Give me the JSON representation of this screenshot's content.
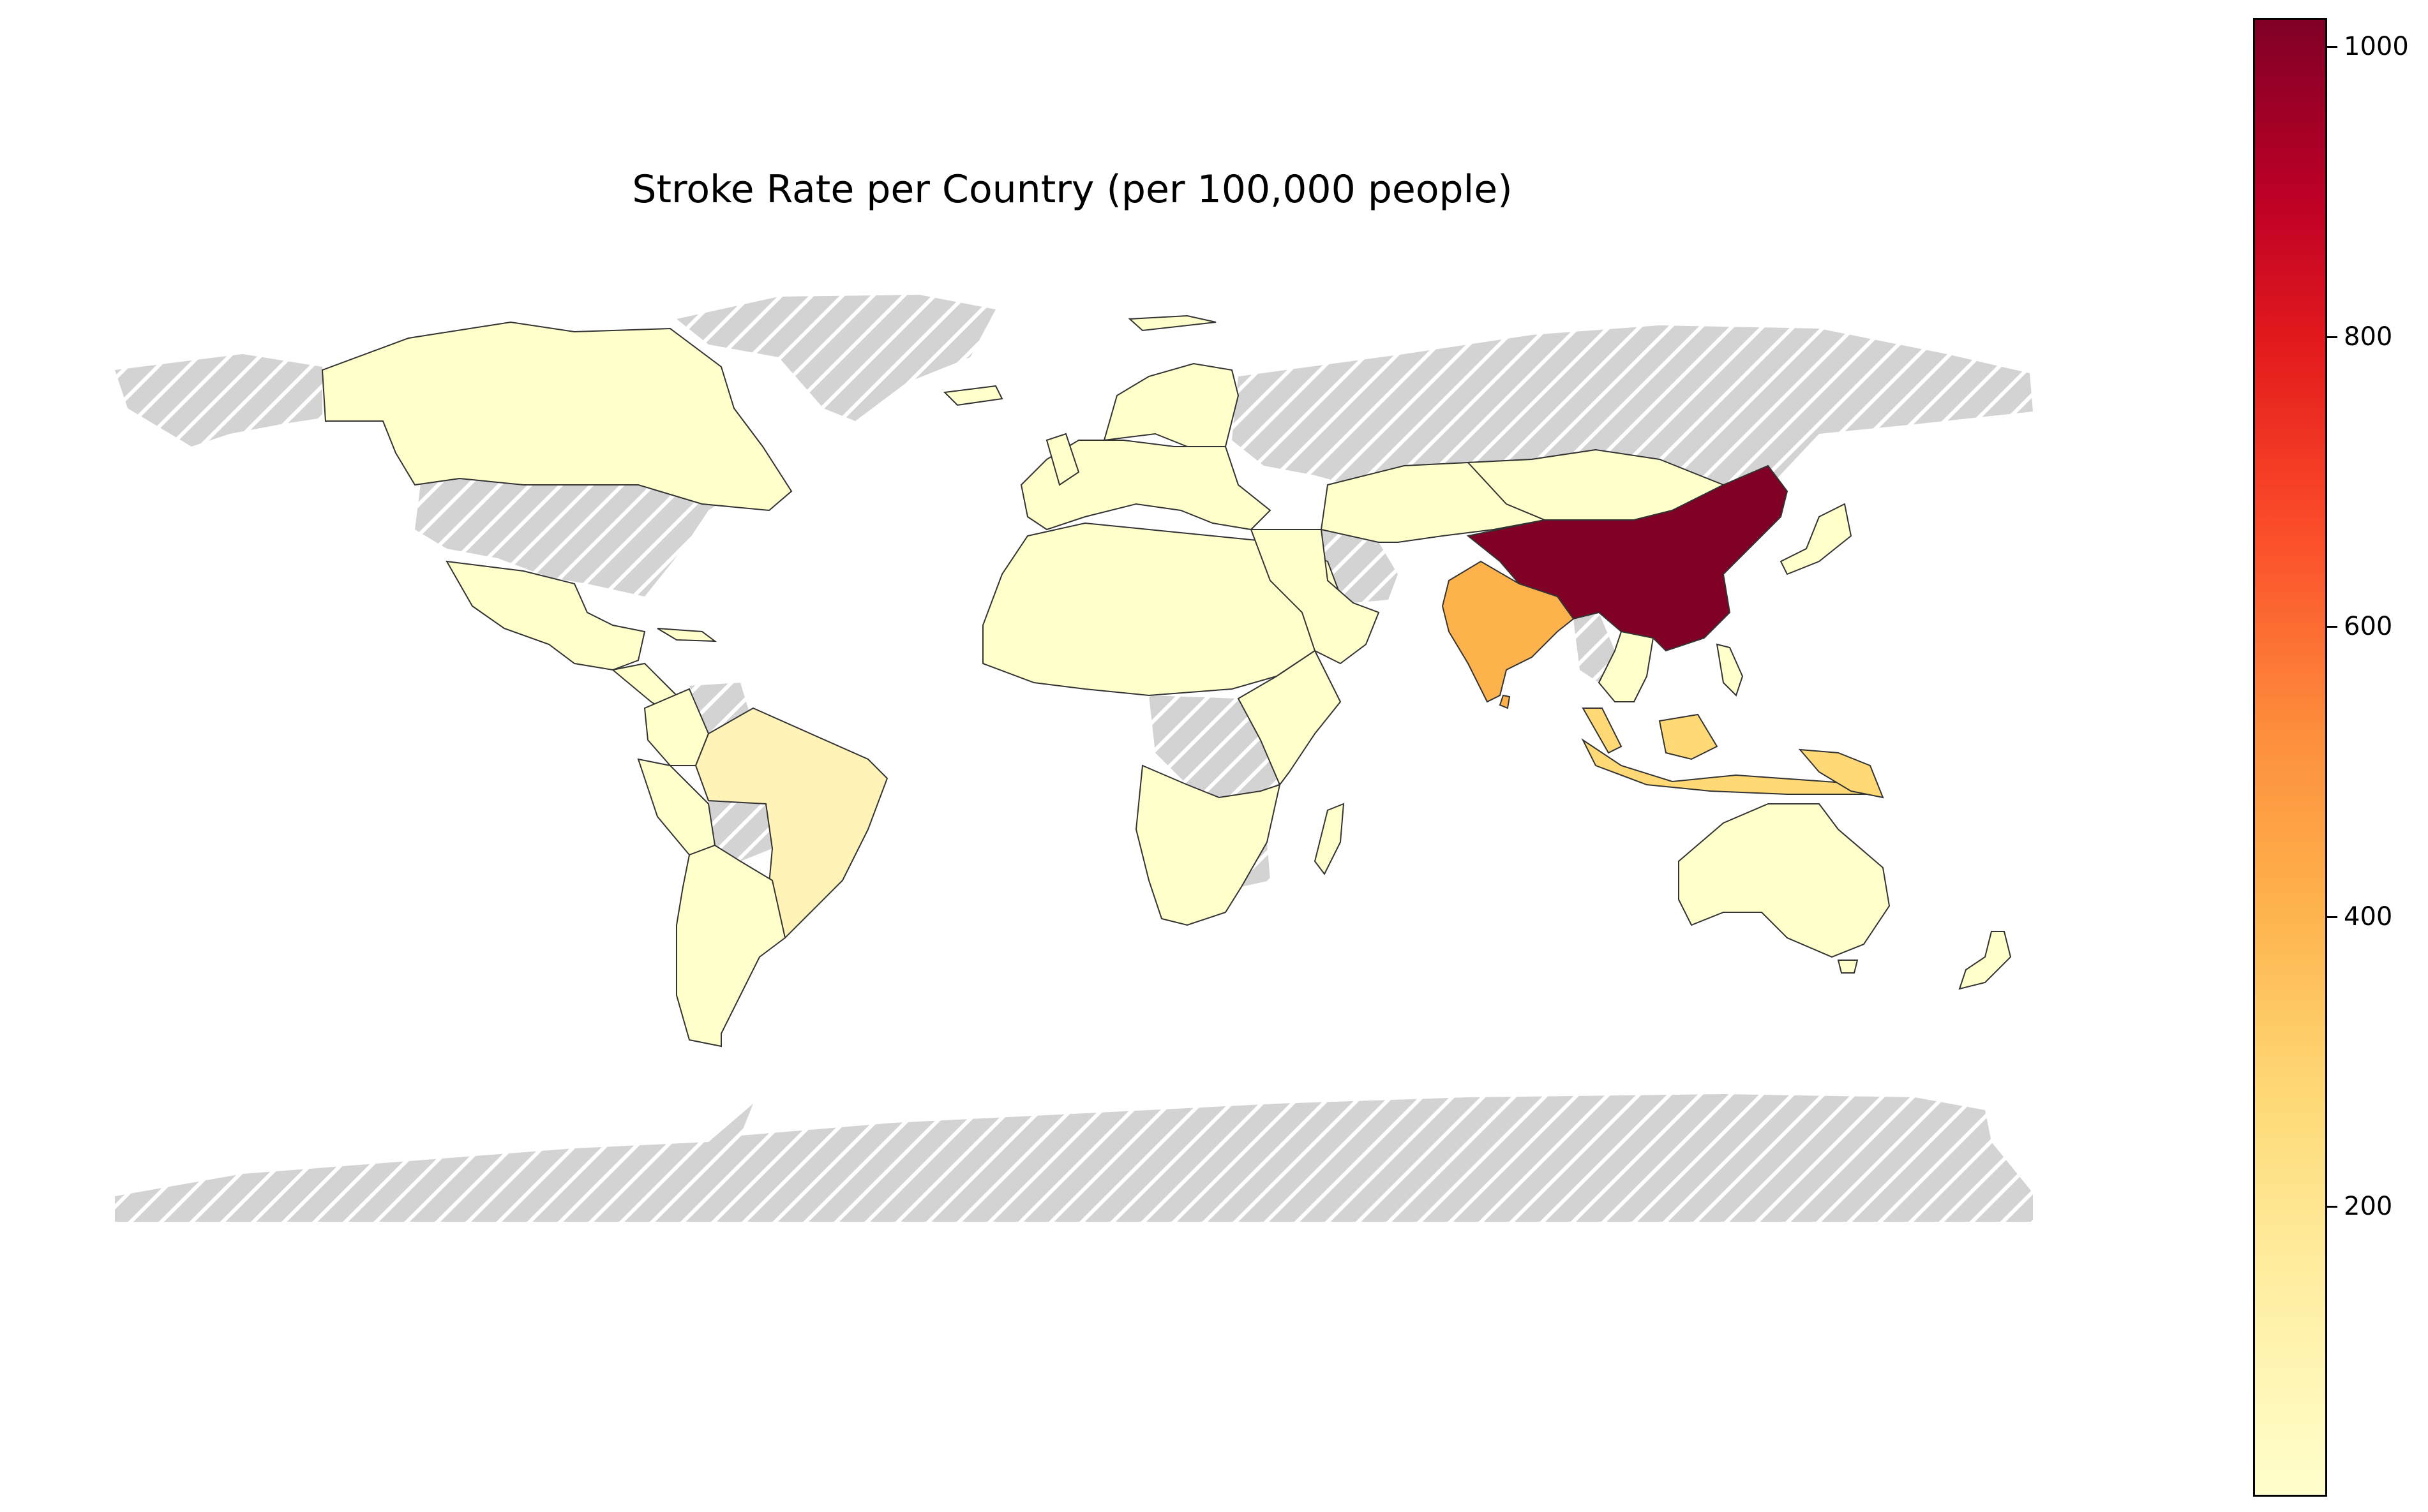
{
  "title": "Stroke Rate per Country (per 100,000 people)",
  "colorbar": {
    "min": 0,
    "max": 1020,
    "ticks": [
      {
        "value": 200,
        "label": "200"
      },
      {
        "value": 400,
        "label": "400"
      },
      {
        "value": 600,
        "label": "600"
      },
      {
        "value": 800,
        "label": "800"
      },
      {
        "value": 1000,
        "label": "1000"
      }
    ],
    "colormap": [
      "#ffffcc",
      "#ffeda0",
      "#fed976",
      "#feb24c",
      "#fd8d3c",
      "#fc4e2a",
      "#e31a1c",
      "#bd0026",
      "#800026"
    ]
  },
  "colors": {
    "missing": "#d3d3d3",
    "border": "#333333",
    "china": "#800026",
    "india": "#feb24c",
    "low": "#ffffcc",
    "low_mid": "#fff3b8",
    "indonesia": "#fed976"
  }
}
